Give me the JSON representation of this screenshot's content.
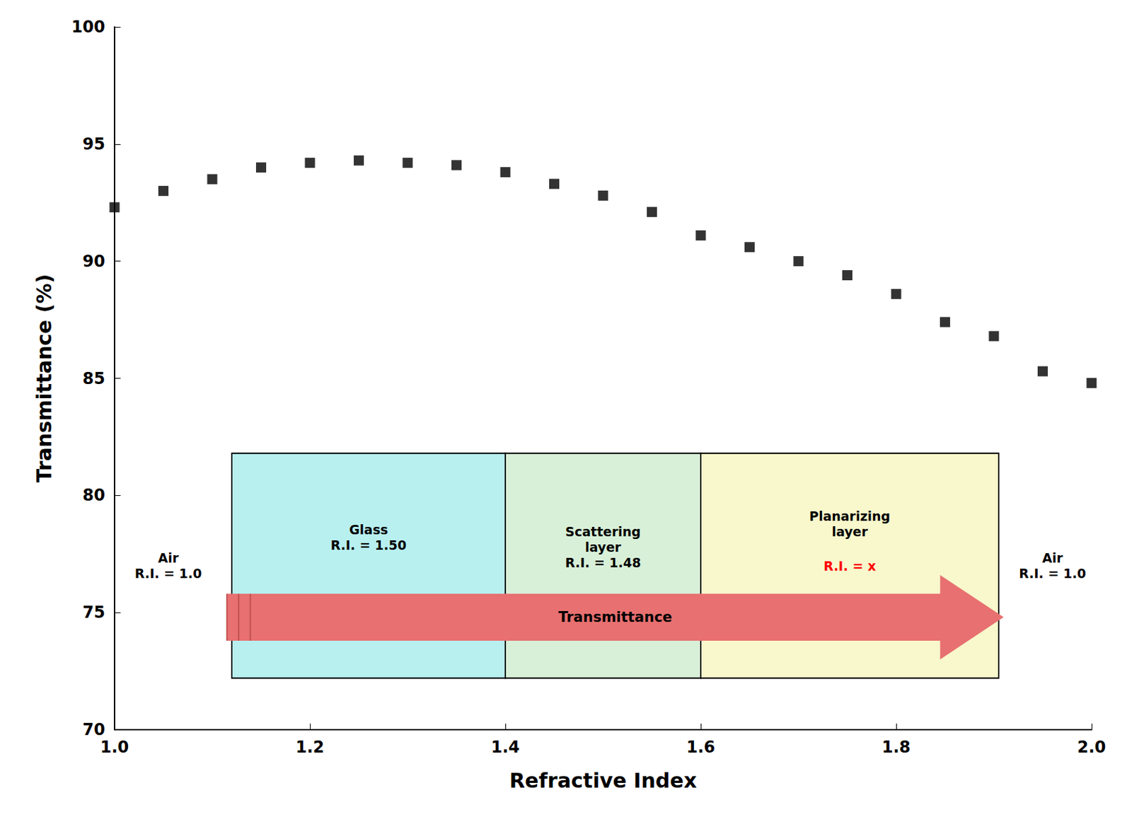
{
  "chart_data": {
    "type": "scatter",
    "x": [
      1.0,
      1.05,
      1.1,
      1.15,
      1.2,
      1.25,
      1.3,
      1.35,
      1.4,
      1.45,
      1.5,
      1.55,
      1.6,
      1.65,
      1.7,
      1.75,
      1.8,
      1.85,
      1.9,
      1.95,
      2.0
    ],
    "values": [
      92.3,
      93.0,
      93.5,
      94.0,
      94.2,
      94.3,
      94.2,
      94.1,
      93.8,
      93.3,
      92.8,
      92.1,
      91.1,
      90.6,
      90.0,
      89.4,
      88.6,
      87.4,
      86.8,
      85.3,
      84.8
    ],
    "xlabel": "Refractive Index",
    "ylabel": "Transmittance (%)",
    "xlim": [
      1.0,
      2.0
    ],
    "ylim": [
      70,
      100
    ],
    "xticks": [
      {
        "value": 1.0,
        "label": "1.0"
      },
      1.2,
      1.4,
      1.6,
      1.8,
      {
        "value": 2.0,
        "label": "2.0"
      }
    ],
    "yticks": [
      70,
      75,
      80,
      85,
      90,
      95,
      100
    ],
    "color": "#000000",
    "marker": "square",
    "grid": false,
    "annotations": [
      "Air\nR.I. = 1.0",
      "Air\nR.I. = 1.0",
      "Glass\nR.I. = 1.50",
      "Scattering\nlayer\nR.I. = 1.48",
      "Planarizing\nlayer",
      "R.I. = x",
      "Transmittance"
    ]
  }
}
